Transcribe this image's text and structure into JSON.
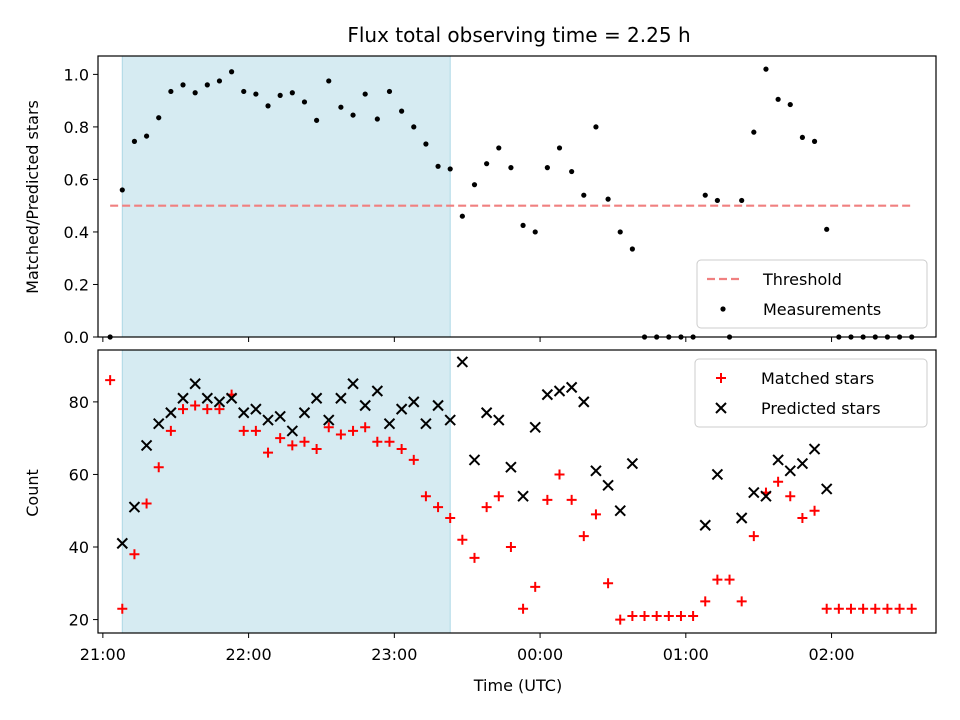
{
  "colors": {
    "shade": "#add8e6",
    "threshold": "#f08080",
    "measurements": "#000000",
    "matched": "#ff0000",
    "predicted": "#000000"
  },
  "chart_data": [
    {
      "type": "scatter",
      "title": "Flux total observing time = 2.25 h",
      "xlabel": "",
      "ylabel": "Matched/Predicted stars",
      "xlim": [
        "20:58",
        "02:43"
      ],
      "ylim": [
        0,
        1.07
      ],
      "yticks": [
        "0.0",
        "0.2",
        "0.4",
        "0.6",
        "0.8",
        "1.0"
      ],
      "grid": false,
      "legend": {
        "location": "lower right",
        "entries": [
          "Threshold",
          "Measurements"
        ]
      },
      "shaded_span": {
        "start": "21:08",
        "end": "23:23"
      },
      "threshold": {
        "name": "Threshold",
        "style": "dashed",
        "y": 0.5,
        "x_start": "21:03",
        "x_end": "02:33"
      },
      "series": [
        {
          "name": "Measurements",
          "marker": "dot",
          "points": [
            [
              "21:03",
              0.0
            ],
            [
              "21:08",
              0.56
            ],
            [
              "21:13",
              0.745
            ],
            [
              "21:18",
              0.765
            ],
            [
              "21:23",
              0.835
            ],
            [
              "21:28",
              0.935
            ],
            [
              "21:33",
              0.96
            ],
            [
              "21:38",
              0.93
            ],
            [
              "21:43",
              0.96
            ],
            [
              "21:48",
              0.975
            ],
            [
              "21:53",
              1.01
            ],
            [
              "21:58",
              0.935
            ],
            [
              "22:03",
              0.925
            ],
            [
              "22:08",
              0.88
            ],
            [
              "22:13",
              0.92
            ],
            [
              "22:18",
              0.93
            ],
            [
              "22:23",
              0.895
            ],
            [
              "22:28",
              0.825
            ],
            [
              "22:33",
              0.975
            ],
            [
              "22:38",
              0.875
            ],
            [
              "22:43",
              0.845
            ],
            [
              "22:48",
              0.925
            ],
            [
              "22:53",
              0.83
            ],
            [
              "22:58",
              0.935
            ],
            [
              "23:03",
              0.86
            ],
            [
              "23:08",
              0.8
            ],
            [
              "23:13",
              0.735
            ],
            [
              "23:18",
              0.65
            ],
            [
              "23:23",
              0.64
            ],
            [
              "23:28",
              0.46
            ],
            [
              "23:33",
              0.58
            ],
            [
              "23:38",
              0.66
            ],
            [
              "23:43",
              0.72
            ],
            [
              "23:48",
              0.645
            ],
            [
              "23:53",
              0.425
            ],
            [
              "23:58",
              0.4
            ],
            [
              "00:03",
              0.645
            ],
            [
              "00:08",
              0.72
            ],
            [
              "00:13",
              0.63
            ],
            [
              "00:18",
              0.54
            ],
            [
              "00:23",
              0.8
            ],
            [
              "00:28",
              0.525
            ],
            [
              "00:33",
              0.4
            ],
            [
              "00:38",
              0.335
            ],
            [
              "00:43",
              0.0
            ],
            [
              "00:48",
              0.0
            ],
            [
              "00:53",
              0.0
            ],
            [
              "00:58",
              0.0
            ],
            [
              "01:03",
              0.0
            ],
            [
              "01:08",
              0.54
            ],
            [
              "01:13",
              0.52
            ],
            [
              "01:18",
              0.0
            ],
            [
              "01:23",
              0.52
            ],
            [
              "01:28",
              0.78
            ],
            [
              "01:33",
              1.02
            ],
            [
              "01:38",
              0.905
            ],
            [
              "01:43",
              0.885
            ],
            [
              "01:48",
              0.76
            ],
            [
              "01:53",
              0.745
            ],
            [
              "01:58",
              0.41
            ],
            [
              "02:03",
              0.0
            ],
            [
              "02:08",
              0.0
            ],
            [
              "02:13",
              0.0
            ],
            [
              "02:18",
              0.0
            ],
            [
              "02:23",
              0.0
            ],
            [
              "02:28",
              0.0
            ],
            [
              "02:33",
              0.0
            ]
          ]
        }
      ]
    },
    {
      "type": "scatter",
      "title": "",
      "xlabel": "Time (UTC)",
      "ylabel": "Count",
      "xlim": [
        "20:58",
        "02:43"
      ],
      "ylim": [
        16.3,
        94.3
      ],
      "yticks": [
        "20",
        "40",
        "60",
        "80"
      ],
      "xticks": [
        "21:00",
        "22:00",
        "23:00",
        "00:00",
        "01:00",
        "02:00"
      ],
      "grid": false,
      "legend": {
        "location": "upper right",
        "entries": [
          "Matched stars",
          "Predicted stars"
        ]
      },
      "shaded_span": {
        "start": "21:08",
        "end": "23:23"
      },
      "series": [
        {
          "name": "Matched stars",
          "marker": "plus",
          "points": [
            [
              "21:03",
              86
            ],
            [
              "21:08",
              23
            ],
            [
              "21:13",
              38
            ],
            [
              "21:18",
              52
            ],
            [
              "21:23",
              62
            ],
            [
              "21:28",
              72
            ],
            [
              "21:33",
              78
            ],
            [
              "21:38",
              79
            ],
            [
              "21:43",
              78
            ],
            [
              "21:48",
              78
            ],
            [
              "21:53",
              82
            ],
            [
              "21:58",
              72
            ],
            [
              "22:03",
              72
            ],
            [
              "22:08",
              66
            ],
            [
              "22:13",
              70
            ],
            [
              "22:18",
              68
            ],
            [
              "22:23",
              69
            ],
            [
              "22:28",
              67
            ],
            [
              "22:33",
              73
            ],
            [
              "22:38",
              71
            ],
            [
              "22:43",
              72
            ],
            [
              "22:48",
              73
            ],
            [
              "22:53",
              69
            ],
            [
              "22:58",
              69
            ],
            [
              "23:03",
              67
            ],
            [
              "23:08",
              64
            ],
            [
              "23:13",
              54
            ],
            [
              "23:18",
              51
            ],
            [
              "23:23",
              48
            ],
            [
              "23:28",
              42
            ],
            [
              "23:33",
              37
            ],
            [
              "23:38",
              51
            ],
            [
              "23:43",
              54
            ],
            [
              "23:48",
              40
            ],
            [
              "23:53",
              23
            ],
            [
              "23:58",
              29
            ],
            [
              "00:03",
              53
            ],
            [
              "00:08",
              60
            ],
            [
              "00:13",
              53
            ],
            [
              "00:18",
              43
            ],
            [
              "00:23",
              49
            ],
            [
              "00:28",
              30
            ],
            [
              "00:33",
              20
            ],
            [
              "00:38",
              21
            ],
            [
              "00:43",
              21
            ],
            [
              "00:48",
              21
            ],
            [
              "00:53",
              21
            ],
            [
              "00:58",
              21
            ],
            [
              "01:03",
              21
            ],
            [
              "01:08",
              25
            ],
            [
              "01:13",
              31
            ],
            [
              "01:18",
              31
            ],
            [
              "01:23",
              25
            ],
            [
              "01:28",
              43
            ],
            [
              "01:33",
              55
            ],
            [
              "01:38",
              58
            ],
            [
              "01:43",
              54
            ],
            [
              "01:48",
              48
            ],
            [
              "01:53",
              50
            ],
            [
              "01:58",
              23
            ],
            [
              "02:03",
              23
            ],
            [
              "02:08",
              23
            ],
            [
              "02:13",
              23
            ],
            [
              "02:18",
              23
            ],
            [
              "02:23",
              23
            ],
            [
              "02:28",
              23
            ],
            [
              "02:33",
              23
            ]
          ]
        },
        {
          "name": "Predicted stars",
          "marker": "x",
          "points": [
            [
              "21:08",
              41
            ],
            [
              "21:13",
              51
            ],
            [
              "21:18",
              68
            ],
            [
              "21:23",
              74
            ],
            [
              "21:28",
              77
            ],
            [
              "21:33",
              81
            ],
            [
              "21:38",
              85
            ],
            [
              "21:43",
              81
            ],
            [
              "21:48",
              80
            ],
            [
              "21:53",
              81
            ],
            [
              "21:58",
              77
            ],
            [
              "22:03",
              78
            ],
            [
              "22:08",
              75
            ],
            [
              "22:13",
              76
            ],
            [
              "22:18",
              72
            ],
            [
              "22:23",
              77
            ],
            [
              "22:28",
              81
            ],
            [
              "22:33",
              75
            ],
            [
              "22:38",
              81
            ],
            [
              "22:43",
              85
            ],
            [
              "22:48",
              79
            ],
            [
              "22:53",
              83
            ],
            [
              "22:58",
              74
            ],
            [
              "23:03",
              78
            ],
            [
              "23:08",
              80
            ],
            [
              "23:13",
              74
            ],
            [
              "23:18",
              79
            ],
            [
              "23:23",
              75
            ],
            [
              "23:28",
              91
            ],
            [
              "23:33",
              64
            ],
            [
              "23:38",
              77
            ],
            [
              "23:43",
              75
            ],
            [
              "23:48",
              62
            ],
            [
              "23:53",
              54
            ],
            [
              "23:58",
              73
            ],
            [
              "00:03",
              82
            ],
            [
              "00:08",
              83
            ],
            [
              "00:13",
              84
            ],
            [
              "00:18",
              80
            ],
            [
              "00:23",
              61
            ],
            [
              "00:28",
              57
            ],
            [
              "00:33",
              50
            ],
            [
              "00:38",
              63
            ],
            [
              "01:08",
              46
            ],
            [
              "01:13",
              60
            ],
            [
              "01:23",
              48
            ],
            [
              "01:28",
              55
            ],
            [
              "01:33",
              54
            ],
            [
              "01:38",
              64
            ],
            [
              "01:43",
              61
            ],
            [
              "01:48",
              63
            ],
            [
              "01:53",
              67
            ],
            [
              "01:58",
              56
            ]
          ]
        }
      ]
    }
  ]
}
